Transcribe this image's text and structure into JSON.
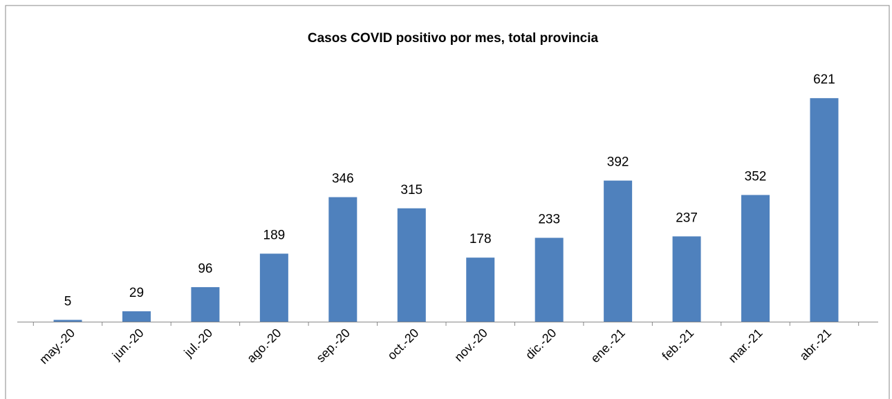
{
  "chart_data": {
    "type": "bar",
    "title": "Casos COVID positivo por mes, total provincia",
    "categories": [
      "may.-20",
      "jun.-20",
      "jul.-20",
      "ago.-20",
      "sep.-20",
      "oct.-20",
      "nov.-20",
      "dic.-20",
      "ene.-21",
      "feb.-21",
      "mar.-21",
      "abr.-21"
    ],
    "values": [
      5,
      29,
      96,
      189,
      346,
      315,
      178,
      233,
      392,
      237,
      352,
      621
    ],
    "color": "#4f81bd",
    "ylim": [
      0,
      700
    ]
  }
}
